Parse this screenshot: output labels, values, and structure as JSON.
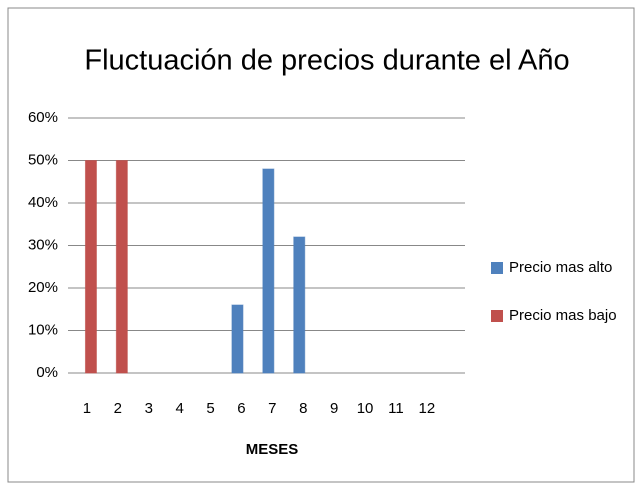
{
  "chart_data": {
    "type": "bar",
    "title": "Fluctuación de precios durante el Año",
    "x_label": "MESES",
    "categories": [
      "1",
      "2",
      "3",
      "4",
      "5",
      "6",
      "7",
      "8",
      "9",
      "10",
      "11",
      "12"
    ],
    "series": [
      {
        "name": "Precio mas alto",
        "color": "#4f81bd",
        "values": [
          0,
          0,
          0,
          0,
          0,
          16,
          48,
          32,
          0,
          0,
          0,
          0
        ]
      },
      {
        "name": "Precio mas bajo",
        "color": "#c0504d",
        "values": [
          50,
          50,
          0,
          0,
          0,
          0,
          0,
          0,
          0,
          0,
          0,
          0
        ]
      }
    ],
    "ylim": [
      0,
      60
    ],
    "yticks": [
      {
        "value": 0,
        "label": "0%"
      },
      {
        "value": 10,
        "label": "10%"
      },
      {
        "value": 20,
        "label": "20%"
      },
      {
        "value": 30,
        "label": "30%"
      },
      {
        "value": 40,
        "label": "40%"
      },
      {
        "value": 50,
        "label": "50%"
      },
      {
        "value": 60,
        "label": "60%"
      }
    ],
    "grid": true,
    "legend": "right"
  }
}
